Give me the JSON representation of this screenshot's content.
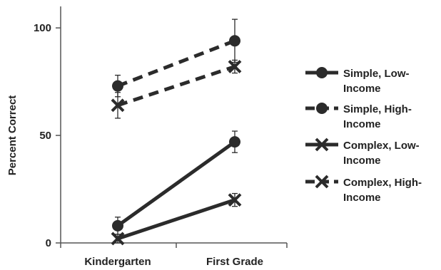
{
  "chart_data": {
    "type": "line",
    "title": "",
    "xlabel": "",
    "ylabel": "Percent Correct",
    "categories": [
      "Kindergarten",
      "First Grade"
    ],
    "ylim": [
      0,
      110
    ],
    "yticks": [
      0,
      50,
      100
    ],
    "grid": false,
    "legend_position": "right",
    "series": [
      {
        "name": "Simple, Low-Income",
        "line": "solid",
        "marker": "circle",
        "values": [
          8,
          47
        ],
        "error": [
          4,
          5
        ]
      },
      {
        "name": "Simple, High-Income",
        "line": "dashed",
        "marker": "circle",
        "values": [
          73,
          94
        ],
        "error": [
          5,
          10
        ]
      },
      {
        "name": "Complex, Low-Income",
        "line": "solid",
        "marker": "x",
        "values": [
          2,
          20
        ],
        "error": [
          2,
          3
        ]
      },
      {
        "name": "Complex, High-Income",
        "line": "dashed",
        "marker": "x",
        "values": [
          64,
          82
        ],
        "error": [
          6,
          3
        ]
      }
    ],
    "legend_lines": [
      [
        "Simple, Low-",
        "Income"
      ],
      [
        "Simple, High-",
        "Income"
      ],
      [
        "Complex, Low-",
        "Income"
      ],
      [
        "Complex, High-",
        "Income"
      ]
    ],
    "colors": {
      "ink": "#2b2b2b",
      "axis": "#555555"
    }
  }
}
